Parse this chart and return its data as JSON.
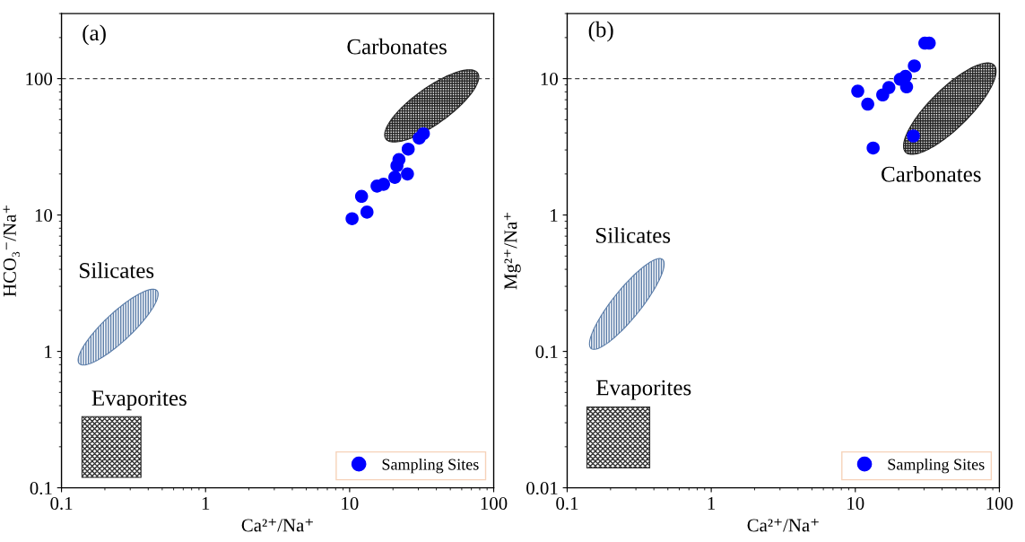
{
  "chart_data": [
    {
      "type": "scatter",
      "xlabel": "Ca²⁺/Na⁺",
      "ylabel": "HCO₃⁻/Na⁺",
      "log": "xy",
      "xlim": [
        0.1,
        100
      ],
      "ylim": [
        0.1,
        300
      ],
      "xticks": [
        0.1,
        1,
        10,
        100
      ],
      "yticks": [
        0.1,
        1,
        10,
        100
      ],
      "marker": "circle",
      "legend": "bottom right",
      "ref_lines": [
        {
          "axis": "y",
          "value": 100,
          "line_style": "dashed",
          "color": "#444444"
        }
      ],
      "annotations": [
        "(a)",
        "Carbonates",
        "Silicates",
        "Evaporites"
      ],
      "series": [
        {
          "name": "Sampling Sites",
          "color": "#0000ff",
          "x": [
            10.4,
            13.2,
            12.1,
            15.5,
            17.2,
            20.6,
            25.2,
            21.3,
            22.0,
            25.5,
            30.4,
            32.5
          ],
          "values": [
            9.4,
            10.5,
            13.7,
            16.3,
            16.8,
            18.9,
            20.0,
            23.0,
            25.5,
            30.4,
            36.6,
            39.5
          ]
        }
      ]
    },
    {
      "type": "scatter",
      "xlabel": "Ca²⁺/Na⁺",
      "ylabel": "Mg²⁺/Na⁺",
      "log": "xy",
      "xlim": [
        0.1,
        100
      ],
      "ylim": [
        0.01,
        30
      ],
      "xticks": [
        0.1,
        1,
        10,
        100
      ],
      "yticks": [
        0.01,
        0.1,
        1,
        10
      ],
      "marker": "circle",
      "legend": "bottom right",
      "ref_lines": [
        {
          "axis": "y",
          "value": 10,
          "line_style": "dashed",
          "color": "#444444"
        }
      ],
      "annotations": [
        "(b)",
        "Carbonates",
        "Silicates",
        "Evaporites"
      ],
      "series": [
        {
          "name": "Sampling Sites",
          "color": "#0000ff",
          "x": [
            10.4,
            12.2,
            13.3,
            15.5,
            17.1,
            20.5,
            22.3,
            22.7,
            25.3,
            25.7,
            30.4,
            32.6
          ],
          "values": [
            8.1,
            6.5,
            3.1,
            7.6,
            8.6,
            9.9,
            10.4,
            8.7,
            3.8,
            12.4,
            18.2,
            18.2
          ]
        }
      ]
    }
  ]
}
